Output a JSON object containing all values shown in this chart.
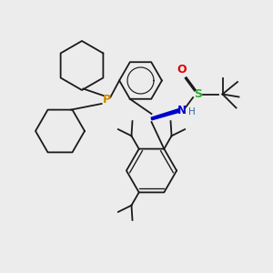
{
  "background_color": "#ececec",
  "bond_color": "#1a1a1a",
  "P_color": "#cc8800",
  "N_color": "#0000cc",
  "S_color": "#33aa33",
  "O_color": "#dd0000",
  "H_color": "#336699",
  "figsize": [
    3.0,
    3.0
  ],
  "dpi": 100,
  "xlim": [
    0,
    10
  ],
  "ylim": [
    0,
    10
  ]
}
